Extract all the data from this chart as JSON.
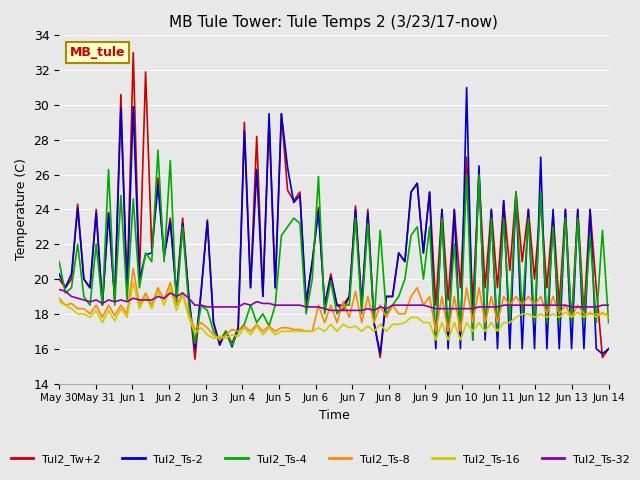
{
  "title": "MB Tule Tower: Tule Temps 2 (3/23/17-now)",
  "xlabel": "Time",
  "ylabel": "Temperature (C)",
  "ylim": [
    14,
    34
  ],
  "yticks": [
    14,
    16,
    18,
    20,
    22,
    24,
    26,
    28,
    30,
    32,
    34
  ],
  "background_color": "#e8e8e8",
  "plot_bg_color": "#e8e8e8",
  "legend_label": "MB_tule",
  "series_colors": {
    "Tul2_Tw+2": "#cc0000",
    "Tul2_Ts-2": "#0000cc",
    "Tul2_Ts-4": "#00aa00",
    "Tul2_Ts-8": "#ff8800",
    "Tul2_Ts-16": "#cccc00",
    "Tul2_Ts-32": "#8800aa"
  },
  "tick_labels": [
    "May 30",
    "May 31",
    "Jun 1",
    "Jun 2",
    "Jun 3",
    "Jun 4",
    "Jun 5",
    "Jun 6",
    "Jun 7",
    "Jun 8",
    "Jun 9",
    "Jun 10",
    "Jun 11",
    "Jun 12",
    "Jun 13",
    "Jun 14"
  ],
  "series": {
    "Tul2_Tw+2": [
      20.0,
      19.5,
      20.0,
      24.3,
      20.0,
      19.5,
      24.0,
      18.5,
      23.8,
      18.8,
      30.6,
      19.2,
      33.0,
      20.0,
      31.9,
      21.7,
      25.8,
      21.3,
      23.5,
      19.1,
      23.5,
      19.0,
      15.4,
      19.3,
      23.4,
      17.5,
      16.3,
      17.0,
      16.3,
      17.2,
      29.0,
      19.5,
      28.2,
      19.0,
      29.0,
      19.5,
      29.5,
      25.1,
      24.5,
      25.0,
      18.4,
      21.0,
      24.1,
      18.5,
      20.3,
      18.5,
      18.2,
      19.0,
      24.2,
      18.5,
      24.0,
      17.5,
      15.5,
      19.0,
      19.0,
      21.5,
      21.0,
      25.0,
      25.5,
      21.5,
      25.0,
      18.5,
      24.0,
      18.8,
      24.0,
      19.5,
      27.0,
      18.5,
      26.0,
      19.5,
      24.0,
      19.5,
      24.5,
      20.5,
      25.0,
      21.0,
      24.0,
      20.0,
      24.5,
      19.5,
      23.8,
      18.5,
      24.0,
      17.5,
      24.0,
      18.0,
      24.0,
      19.5,
      15.5,
      16.0
    ],
    "Tul2_Ts-2": [
      20.3,
      19.5,
      20.3,
      24.1,
      20.0,
      19.5,
      23.8,
      18.5,
      23.8,
      18.8,
      29.8,
      19.2,
      29.9,
      20.0,
      21.4,
      21.5,
      25.4,
      21.3,
      23.3,
      19.1,
      23.2,
      19.0,
      16.0,
      19.3,
      23.3,
      17.5,
      16.2,
      17.0,
      16.1,
      17.2,
      28.5,
      19.5,
      26.3,
      19.0,
      29.5,
      19.5,
      29.5,
      26.4,
      24.4,
      24.8,
      18.7,
      21.0,
      23.9,
      18.5,
      20.1,
      18.5,
      18.5,
      19.0,
      24.0,
      18.5,
      23.8,
      17.5,
      15.7,
      19.0,
      19.0,
      21.5,
      21.0,
      25.0,
      25.5,
      21.5,
      25.0,
      16.0,
      24.0,
      16.0,
      24.0,
      16.0,
      31.0,
      16.5,
      26.5,
      16.5,
      24.0,
      16.0,
      24.5,
      16.0,
      25.0,
      16.0,
      24.0,
      16.0,
      27.0,
      16.0,
      24.0,
      16.0,
      24.0,
      16.0,
      24.0,
      16.0,
      24.0,
      16.0,
      15.7,
      16.0
    ],
    "Tul2_Ts-4": [
      21.0,
      19.2,
      19.5,
      22.0,
      19.0,
      18.5,
      22.0,
      18.5,
      26.3,
      18.5,
      24.8,
      18.8,
      24.6,
      19.5,
      21.5,
      21.0,
      27.4,
      21.0,
      26.8,
      18.5,
      23.0,
      18.5,
      16.3,
      18.5,
      18.2,
      17.0,
      16.5,
      17.0,
      16.2,
      17.0,
      17.4,
      18.5,
      17.5,
      18.0,
      17.3,
      18.5,
      22.5,
      23.0,
      23.5,
      23.2,
      18.0,
      20.0,
      25.9,
      18.0,
      19.9,
      18.0,
      18.5,
      18.5,
      23.5,
      18.0,
      23.2,
      17.5,
      22.8,
      18.0,
      18.5,
      19.0,
      20.0,
      22.5,
      23.0,
      20.0,
      23.0,
      16.5,
      23.5,
      17.0,
      22.0,
      17.0,
      26.0,
      16.5,
      26.0,
      17.0,
      23.5,
      17.0,
      23.5,
      17.5,
      25.0,
      18.0,
      23.5,
      17.5,
      25.0,
      17.5,
      23.0,
      17.5,
      23.5,
      17.5,
      23.5,
      17.5,
      22.5,
      17.5,
      22.8,
      17.5
    ],
    "Tul2_Ts-8": [
      18.9,
      18.5,
      18.6,
      18.3,
      18.3,
      18.0,
      18.5,
      17.8,
      18.5,
      17.9,
      18.5,
      18.0,
      20.6,
      18.5,
      19.2,
      18.5,
      19.5,
      18.8,
      19.8,
      18.5,
      19.2,
      18.0,
      17.1,
      17.5,
      17.2,
      16.8,
      16.5,
      16.8,
      17.1,
      17.0,
      17.3,
      17.0,
      17.4,
      17.0,
      17.3,
      17.0,
      17.2,
      17.2,
      17.1,
      17.1,
      17.0,
      17.0,
      18.5,
      17.5,
      18.5,
      17.5,
      18.7,
      17.8,
      19.3,
      17.5,
      19.0,
      17.5,
      18.5,
      17.8,
      18.5,
      18.0,
      18.0,
      19.0,
      19.5,
      18.5,
      19.0,
      17.0,
      19.0,
      17.0,
      19.0,
      17.0,
      19.5,
      17.5,
      19.5,
      17.5,
      19.0,
      17.5,
      19.0,
      18.5,
      19.0,
      18.5,
      19.0,
      18.5,
      19.0,
      18.0,
      19.0,
      18.0,
      18.5,
      17.8,
      18.5,
      18.0,
      18.0,
      18.0,
      18.0,
      18.0
    ],
    "Tul2_Ts-16": [
      18.7,
      18.5,
      18.3,
      18.0,
      18.0,
      17.8,
      18.2,
      17.5,
      18.2,
      17.6,
      18.3,
      17.8,
      19.8,
      18.3,
      19.0,
      18.3,
      19.3,
      18.5,
      19.5,
      18.2,
      19.1,
      17.8,
      16.9,
      17.2,
      16.8,
      16.6,
      16.7,
      16.6,
      16.8,
      16.7,
      17.2,
      16.8,
      17.3,
      16.8,
      17.2,
      16.8,
      17.0,
      17.0,
      17.0,
      17.0,
      17.0,
      17.0,
      17.2,
      17.0,
      17.4,
      17.0,
      17.4,
      17.2,
      17.3,
      17.0,
      17.3,
      17.0,
      17.4,
      17.0,
      17.4,
      17.4,
      17.5,
      17.8,
      17.8,
      17.5,
      17.5,
      16.5,
      17.5,
      16.5,
      17.5,
      16.5,
      17.5,
      17.0,
      17.5,
      17.0,
      17.5,
      17.0,
      17.5,
      17.5,
      17.8,
      18.0,
      18.0,
      17.8,
      18.0,
      17.8,
      18.0,
      17.8,
      18.1,
      17.8,
      18.1,
      17.8,
      18.1,
      17.8,
      18.1,
      17.8
    ],
    "Tul2_Ts-32": [
      19.4,
      19.3,
      19.0,
      18.9,
      18.8,
      18.7,
      18.8,
      18.6,
      18.8,
      18.7,
      18.8,
      18.7,
      18.9,
      18.8,
      18.8,
      18.8,
      19.0,
      18.9,
      19.2,
      19.0,
      19.2,
      18.9,
      18.5,
      18.5,
      18.4,
      18.4,
      18.4,
      18.4,
      18.4,
      18.4,
      18.6,
      18.5,
      18.7,
      18.6,
      18.6,
      18.5,
      18.5,
      18.5,
      18.5,
      18.5,
      18.4,
      18.4,
      18.4,
      18.3,
      18.2,
      18.2,
      18.2,
      18.2,
      18.2,
      18.2,
      18.3,
      18.2,
      18.4,
      18.3,
      18.5,
      18.5,
      18.5,
      18.5,
      18.5,
      18.5,
      18.4,
      18.3,
      18.3,
      18.3,
      18.3,
      18.3,
      18.3,
      18.3,
      18.4,
      18.4,
      18.4,
      18.4,
      18.5,
      18.5,
      18.5,
      18.5,
      18.5,
      18.5,
      18.5,
      18.5,
      18.5,
      18.5,
      18.5,
      18.4,
      18.4,
      18.4,
      18.4,
      18.4,
      18.5,
      18.5
    ]
  }
}
